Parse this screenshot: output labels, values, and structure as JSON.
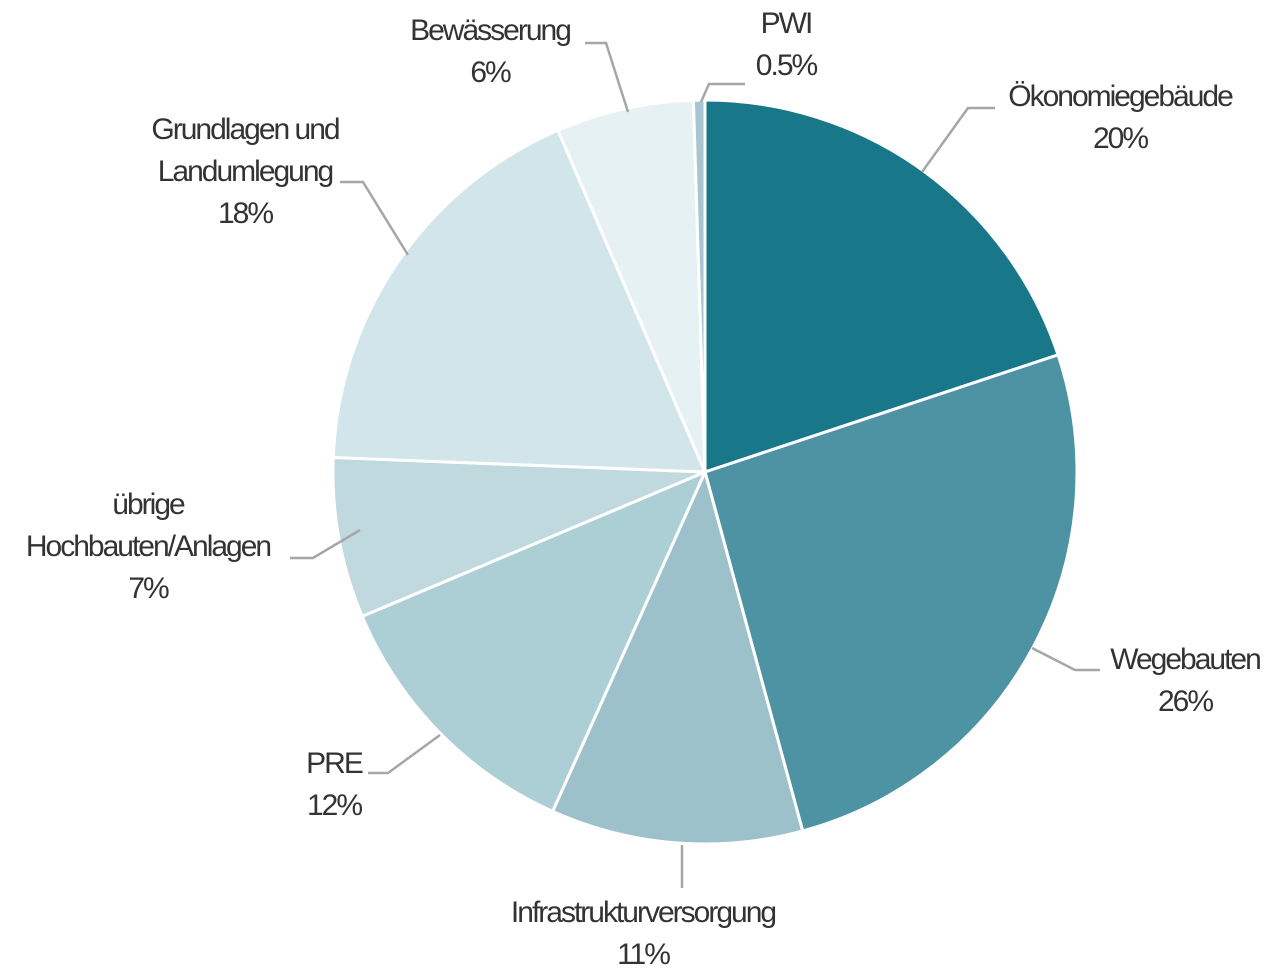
{
  "chart_data": {
    "type": "pie",
    "categories": [
      "Ökonomiegebäude",
      "Wegebauten",
      "Infrastrukturversorgung",
      "PRE",
      "übrige Hochbauten/Anlagen",
      "Grundlagen und Landumlegung",
      "Bewässerung",
      "PWI"
    ],
    "values": [
      20,
      26,
      11,
      12,
      7,
      18,
      6,
      0.5
    ],
    "value_labels": [
      "20%",
      "26%",
      "11%",
      "12%",
      "7%",
      "18%",
      "6%",
      "0.5%"
    ],
    "colors": [
      "#18788a",
      "#4e93a3",
      "#9dc1ca",
      "#acced5",
      "#bfd9de",
      "#d1e5ea",
      "#e6f1f4",
      "#a9c6d0"
    ]
  }
}
